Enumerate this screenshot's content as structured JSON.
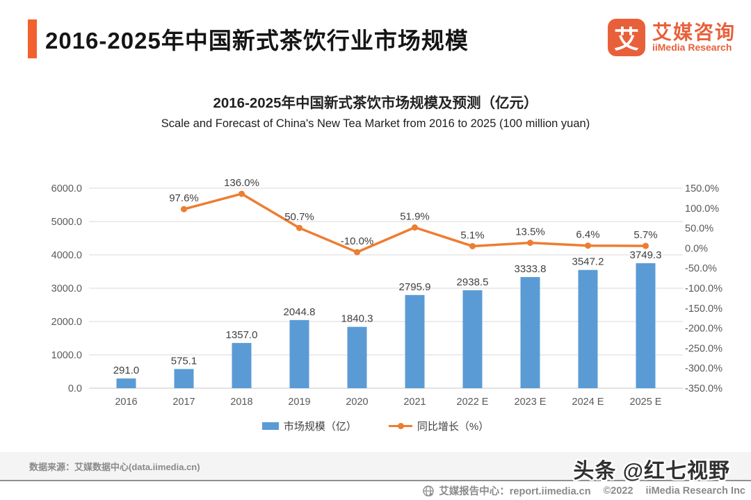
{
  "header": {
    "title": "2016-2025年中国新式茶饮行业市场规模",
    "logo": {
      "mark": "艾",
      "name_cn": "艾媒咨询",
      "name_en": "iiMedia Research"
    }
  },
  "colors": {
    "accent_orange": "#F3602F",
    "logo_orange": "#E8603A",
    "bar_blue": "#5B9BD5",
    "line_orange": "#ED7D31",
    "grid_gray": "#D9D9D9"
  },
  "chart_data": {
    "type": "bar",
    "title": "2016-2025年中国新式茶饮市场规模及预测（亿元）",
    "subtitle": "Scale and Forecast of China's New Tea Market from 2016 to 2025 (100 million yuan)",
    "categories": [
      "2016",
      "2017",
      "2018",
      "2019",
      "2020",
      "2021",
      "2022 E",
      "2023 E",
      "2024 E",
      "2025 E"
    ],
    "series": [
      {
        "name": "市场规模（亿）",
        "type": "bar",
        "axis": "left",
        "color": "#5B9BD5",
        "values": [
          291.0,
          575.1,
          1357.0,
          2044.8,
          1840.3,
          2795.9,
          2938.5,
          3333.8,
          3547.2,
          3749.3
        ],
        "labels": [
          "291.0",
          "575.1",
          "1357.0",
          "2044.8",
          "1840.3",
          "2795.9",
          "2938.5",
          "3333.8",
          "3547.2",
          "3749.3"
        ]
      },
      {
        "name": "同比增长（%）",
        "type": "line",
        "axis": "right",
        "color": "#ED7D31",
        "values": [
          null,
          97.6,
          136.0,
          50.7,
          -10.0,
          51.9,
          5.1,
          13.5,
          6.4,
          5.7
        ],
        "labels": [
          "",
          "97.6%",
          "136.0%",
          "50.7%",
          "-10.0%",
          "51.9%",
          "5.1%",
          "13.5%",
          "6.4%",
          "5.7%"
        ]
      }
    ],
    "left_axis": {
      "min": 0,
      "max": 6000,
      "ticks_top_to_bottom": [
        "6000.0",
        "5000.0",
        "4000.0",
        "3000.0",
        "2000.0",
        "1000.0",
        "0.0"
      ]
    },
    "right_axis": {
      "min": -350,
      "max": 150,
      "ticks_top_to_bottom": [
        "150.0%",
        "100.0%",
        "50.0%",
        "0.0%",
        "-50.0%",
        "-100.0%",
        "-150.0%",
        "-200.0%",
        "-250.0%",
        "-300.0%",
        "-350.0%"
      ]
    },
    "grid": true,
    "legend_position": "bottom"
  },
  "footer": {
    "source": "数据来源：艾媒数据中心(data.iimedia.cn)",
    "report_center": "艾媒报告中心：report.iimedia.cn",
    "copyright": "©2022",
    "company": "iiMedia Research  Inc",
    "watermark": "头条 @红七视野"
  }
}
